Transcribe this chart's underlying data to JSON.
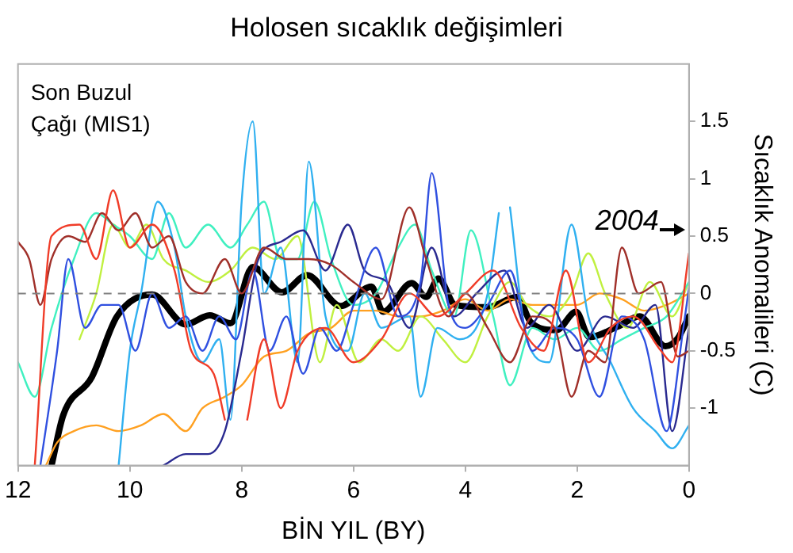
{
  "chart_data": {
    "type": "line",
    "title": "Holosen sıcaklık değişimleri",
    "xlabel": "BİN YIL (BY)",
    "ylabel": "Sıcaklık Anomalileri (C)",
    "xlim": [
      12,
      0
    ],
    "xticks": [
      12,
      10,
      8,
      6,
      4,
      2,
      0
    ],
    "ylim": [
      -1.5,
      2
    ],
    "yticks": [
      -1,
      -0.5,
      0,
      0.5,
      1,
      1.5
    ],
    "grid": false,
    "legend": false,
    "marker": "none",
    "line_style": "solid",
    "ref_lines": [
      {
        "axis": "y",
        "value": 0,
        "color": "#808080",
        "line_style": "dashed"
      }
    ],
    "annotations": [
      "Son Buzul Çağı (MIS1)",
      "2004"
    ],
    "series": [
      {
        "color": "#f03c28",
        "x": [
          11.7,
          11.4,
          10.9,
          10.6,
          10.3,
          10,
          9.6,
          9.2,
          8.9,
          8.5,
          8.3,
          8.1,
          7.9,
          7.6,
          7.3,
          7,
          6.5,
          6,
          5.5,
          5,
          4.5,
          4,
          3.5,
          3,
          2.6,
          2.2,
          1.8,
          1.4,
          1,
          0.5,
          0.3,
          0
        ],
        "values": [
          -1.5,
          0.5,
          0.6,
          0.3,
          0.9,
          0.4,
          0.6,
          0.2,
          -0.5,
          -0.7,
          -1.1,
          null,
          -1.1,
          -0.4,
          -1,
          -0.5,
          -0.3,
          -0.6,
          -0.4,
          0,
          -0.2,
          0,
          0.2,
          -0.3,
          -0.5,
          0.2,
          -0.6,
          -0.3,
          -0.2,
          -0.5,
          -0.6,
          0.35
        ]
      },
      {
        "color": "#a0302a",
        "x": [
          12,
          11.8,
          11.6,
          11.4,
          11.1,
          10.8,
          10.5,
          10.2,
          9.9,
          9.6,
          9.3,
          9,
          8.7,
          8.3,
          8,
          7.6,
          7.2,
          6.8,
          6.4,
          6,
          5.5,
          5,
          4.7,
          4.3,
          4,
          3.6,
          3.2,
          2.8,
          2.4,
          2.1,
          1.8,
          1.5,
          1.2,
          0.9,
          0.5,
          0.2,
          0
        ],
        "values": [
          0.45,
          0.3,
          -0.1,
          0.3,
          0.5,
          0.45,
          0.7,
          0.55,
          0.7,
          0.4,
          0.5,
          0.1,
          0,
          0.3,
          0,
          0.4,
          0.3,
          0.3,
          0.25,
          0.1,
          -0.05,
          0.75,
          0.3,
          -0.2,
          0,
          -0.3,
          -0.6,
          -0.2,
          -0.3,
          -0.9,
          -0.5,
          -0.6,
          0.4,
          0,
          0.1,
          -0.55,
          -0.5
        ]
      },
      {
        "color": "#3050e0",
        "x": [
          11.6,
          11.3,
          11.1,
          10.8,
          10.5,
          10.2,
          9.9,
          9.6,
          9.3,
          9,
          8.7,
          8.4,
          8.1,
          7.8,
          7.5,
          7.2,
          6.9,
          6.6,
          6.3,
          6,
          5.6,
          5.2,
          4.8,
          4.6,
          4.3,
          4,
          3.6,
          3.2,
          2.8,
          2.4,
          2,
          1.6,
          1.2,
          0.8,
          0.4,
          0.1,
          0
        ],
        "values": [
          -1.5,
          -0.5,
          0.3,
          -0.3,
          -0.1,
          -0.1,
          -0.5,
          0,
          -0.3,
          -0.2,
          -0.5,
          -0.2,
          -0.4,
          0.2,
          -0.5,
          -0.2,
          -0.7,
          -0.3,
          -0.5,
          -0.1,
          0.4,
          -0.2,
          0.1,
          1.05,
          -0.1,
          -0.3,
          -0.1,
          0.2,
          -0.5,
          -0.3,
          -0.4,
          -0.9,
          -0.2,
          -0.4,
          -1.2,
          -0.3,
          0.05
        ]
      },
      {
        "color": "#2a2a90",
        "x": [
          9.4,
          9,
          8.6,
          8.3,
          8,
          7.7,
          7.3,
          6.9,
          6.5,
          6.1,
          5.8,
          5.4,
          5,
          4.6,
          4.2,
          3.8,
          3.3,
          2.9,
          2.5,
          2,
          1.5,
          1,
          0.6,
          0.3,
          0
        ],
        "values": [
          -1.5,
          -1.4,
          -1.4,
          -1.2,
          -0.5,
          0.3,
          0.45,
          0.55,
          0.2,
          0.6,
          0.2,
          0.1,
          -0.3,
          0.4,
          -0.2,
          0,
          0.2,
          -0.3,
          -0.1,
          -0.5,
          -0.2,
          -0.3,
          -0.1,
          -1.2,
          -0.3
        ]
      },
      {
        "color": "#30b0f0",
        "x": [
          10.2,
          10,
          9.8,
          9.5,
          9.2,
          9,
          8.7,
          8.4,
          8.2,
          8,
          7.8,
          7.6,
          7.3,
          7,
          6.8,
          6.5,
          6.1,
          5.8,
          5.5,
          5,
          4.8,
          4.5,
          4.1,
          3.6,
          3.4,
          3.3,
          3.2,
          2.9,
          2.5,
          2.1,
          1.8,
          1.4,
          1,
          0.6,
          0.3,
          0
        ],
        "values": [
          -1.5,
          -0.5,
          0,
          0.8,
          0.4,
          -0.2,
          -0.6,
          -0.4,
          -1.1,
          0.8,
          1.5,
          0,
          0.4,
          -0.6,
          1.15,
          -0.2,
          -0.5,
          0,
          -0.3,
          -0.2,
          -0.9,
          -0.3,
          -0.4,
          0,
          0.7,
          null,
          0.75,
          -0.4,
          -0.6,
          0.6,
          -0.2,
          -0.6,
          -1,
          -1.2,
          -1.35,
          -1.15
        ]
      },
      {
        "color": "#40f0c0",
        "x": [
          12,
          11.7,
          11.4,
          11,
          10.6,
          10.3,
          10,
          9.6,
          9.3,
          9,
          8.6,
          8.2,
          7.9,
          7.6,
          7.3,
          7,
          6.7,
          6.4,
          6,
          5.6,
          5.2,
          4.9,
          4.6,
          4.2,
          3.9,
          3.5,
          3.2,
          2.8,
          2.4,
          2,
          1.6,
          1.2,
          0.8,
          0.4,
          0
        ],
        "values": [
          -0.6,
          -0.9,
          -0.3,
          0.3,
          0.7,
          0.6,
          0.5,
          0.3,
          0.7,
          0.4,
          0.6,
          0.4,
          0.6,
          0.8,
          0.3,
          0.3,
          0.8,
          0.3,
          -0.1,
          0,
          0.4,
          0.6,
          0.2,
          -0.2,
          0.55,
          -0.2,
          -0.8,
          -0.3,
          -0.4,
          -0.3,
          -0.5,
          -0.4,
          -0.3,
          -0.2,
          0.1
        ]
      },
      {
        "color": "#c0f040",
        "x": [
          10.9,
          10.6,
          10.3,
          10,
          9.7,
          9.4,
          9,
          8.6,
          8.2,
          7.8,
          7.4,
          7,
          6.6,
          6.3,
          5.9,
          5.5,
          5.2,
          4.8,
          4.4,
          4,
          3.6,
          3.2,
          2.9,
          2.5,
          2.1,
          1.8,
          1.5,
          1.1,
          0.7,
          0.3,
          0
        ],
        "values": [
          -0.4,
          0,
          0.6,
          0.4,
          0.6,
          0.3,
          0.2,
          0.1,
          0.2,
          0.4,
          0.3,
          0.5,
          -0.6,
          -0.1,
          -0.6,
          -0.4,
          -0.5,
          -0.2,
          -0.4,
          -0.6,
          -0.2,
          0.1,
          -0.1,
          -0.2,
          0,
          0.35,
          0,
          -0.3,
          0.1,
          -0.2,
          0.1
        ]
      },
      {
        "color": "#ffa020",
        "x": [
          11.5,
          11.3,
          11,
          10.6,
          10.2,
          9.8,
          9.4,
          9,
          8.7,
          8.3,
          8,
          7.6,
          7.2,
          6.8,
          6.4,
          6,
          5.6,
          5.2,
          4.8,
          4.4,
          4,
          3.6,
          3.2,
          2.8,
          2.4,
          2,
          1.6,
          1.2,
          0.8,
          0.4,
          0
        ],
        "values": [
          -1.5,
          -1.3,
          -1.2,
          -1.15,
          -1.2,
          -1.15,
          -1.05,
          -1.2,
          -1,
          -0.9,
          -0.8,
          -0.55,
          -0.5,
          -0.35,
          -0.3,
          -0.15,
          -0.15,
          -0.2,
          -0.2,
          -0.15,
          -0.05,
          -0.15,
          -0.05,
          -0.1,
          -0.1,
          -0.1,
          0,
          -0.05,
          -0.15,
          -0.1,
          0
        ]
      },
      {
        "color": "#000000",
        "x": [
          11.4,
          11.19,
          10.68,
          10.23,
          9.6,
          9,
          8.57,
          8.2,
          7.8,
          7.28,
          6.83,
          6.23,
          5.68,
          5.47,
          4.96,
          4.7,
          4.48,
          4.18,
          3.6,
          3.07,
          2.83,
          2.37,
          2.02,
          1.78,
          1.28,
          0.88,
          0.42,
          0.2,
          0
        ],
        "values": [
          -1.5,
          -1.06,
          -0.73,
          -0.2,
          -0.01,
          -0.27,
          -0.19,
          -0.26,
          0.23,
          0.01,
          0.16,
          -0.11,
          0.06,
          -0.16,
          0.09,
          -0.03,
          0.13,
          -0.1,
          -0.12,
          -0.03,
          -0.25,
          -0.32,
          -0.16,
          -0.38,
          -0.29,
          -0.2,
          -0.46,
          -0.39,
          -0.2
        ]
      }
    ]
  }
}
